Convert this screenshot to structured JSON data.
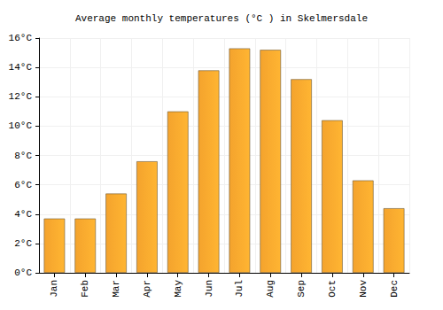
{
  "chart_data": {
    "type": "bar",
    "title": "Average monthly temperatures (°C ) in Skelmersdale",
    "categories": [
      "Jan",
      "Feb",
      "Mar",
      "Apr",
      "May",
      "Jun",
      "Jul",
      "Aug",
      "Sep",
      "Oct",
      "Nov",
      "Dec"
    ],
    "values": [
      3.7,
      3.7,
      5.4,
      7.6,
      11.0,
      13.8,
      15.3,
      15.2,
      13.2,
      10.4,
      6.3,
      4.4
    ],
    "color": "#fca82e",
    "ylim": [
      0,
      16
    ],
    "yticks": [
      {
        "value": 0,
        "label": "0°C"
      },
      {
        "value": 2,
        "label": "2°C"
      },
      {
        "value": 4,
        "label": "4°C"
      },
      {
        "value": 6,
        "label": "6°C"
      },
      {
        "value": 8,
        "label": "8°C"
      },
      {
        "value": 10,
        "label": "10°C"
      },
      {
        "value": 12,
        "label": "12°C"
      },
      {
        "value": 14,
        "label": "14°C"
      },
      {
        "value": 16,
        "label": "16°C"
      }
    ],
    "grid": true
  }
}
